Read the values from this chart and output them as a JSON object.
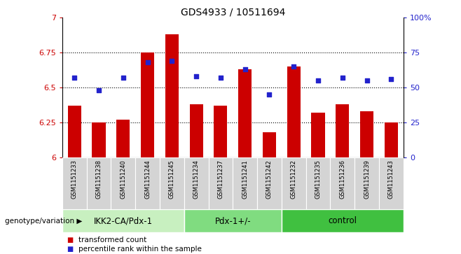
{
  "title": "GDS4933 / 10511694",
  "samples": [
    "GSM1151233",
    "GSM1151238",
    "GSM1151240",
    "GSM1151244",
    "GSM1151245",
    "GSM1151234",
    "GSM1151237",
    "GSM1151241",
    "GSM1151242",
    "GSM1151232",
    "GSM1151235",
    "GSM1151236",
    "GSM1151239",
    "GSM1151243"
  ],
  "red_values": [
    6.37,
    6.25,
    6.27,
    6.75,
    6.88,
    6.38,
    6.37,
    6.63,
    6.18,
    6.65,
    6.32,
    6.38,
    6.33,
    6.25
  ],
  "blue_values": [
    57,
    48,
    57,
    68,
    69,
    58,
    57,
    63,
    45,
    65,
    55,
    57,
    55,
    56
  ],
  "groups": [
    {
      "label": "IKK2-CA/Pdx-1",
      "start": 0,
      "end": 5,
      "color": "#c8f0c0"
    },
    {
      "label": "Pdx-1+/-",
      "start": 5,
      "end": 9,
      "color": "#80dc80"
    },
    {
      "label": "control",
      "start": 9,
      "end": 14,
      "color": "#40c040"
    }
  ],
  "ymin": 6.0,
  "ymax": 7.0,
  "yticks": [
    6.0,
    6.25,
    6.5,
    6.75,
    7.0
  ],
  "ytick_labels": [
    "6",
    "6.25",
    "6.5",
    "6.75",
    "7"
  ],
  "right_yticks": [
    0,
    25,
    50,
    75,
    100
  ],
  "right_ytick_labels": [
    "0",
    "25",
    "50",
    "75",
    "100%"
  ],
  "bar_color": "#cc0000",
  "dot_color": "#2222cc",
  "grid_color": "#000000",
  "legend_red": "transformed count",
  "legend_blue": "percentile rank within the sample",
  "genotype_label": "genotype/variation",
  "left_tick_color": "#cc0000",
  "right_tick_color": "#2222cc",
  "bg_color": "#ffffff",
  "sample_box_color": "#d4d4d4"
}
